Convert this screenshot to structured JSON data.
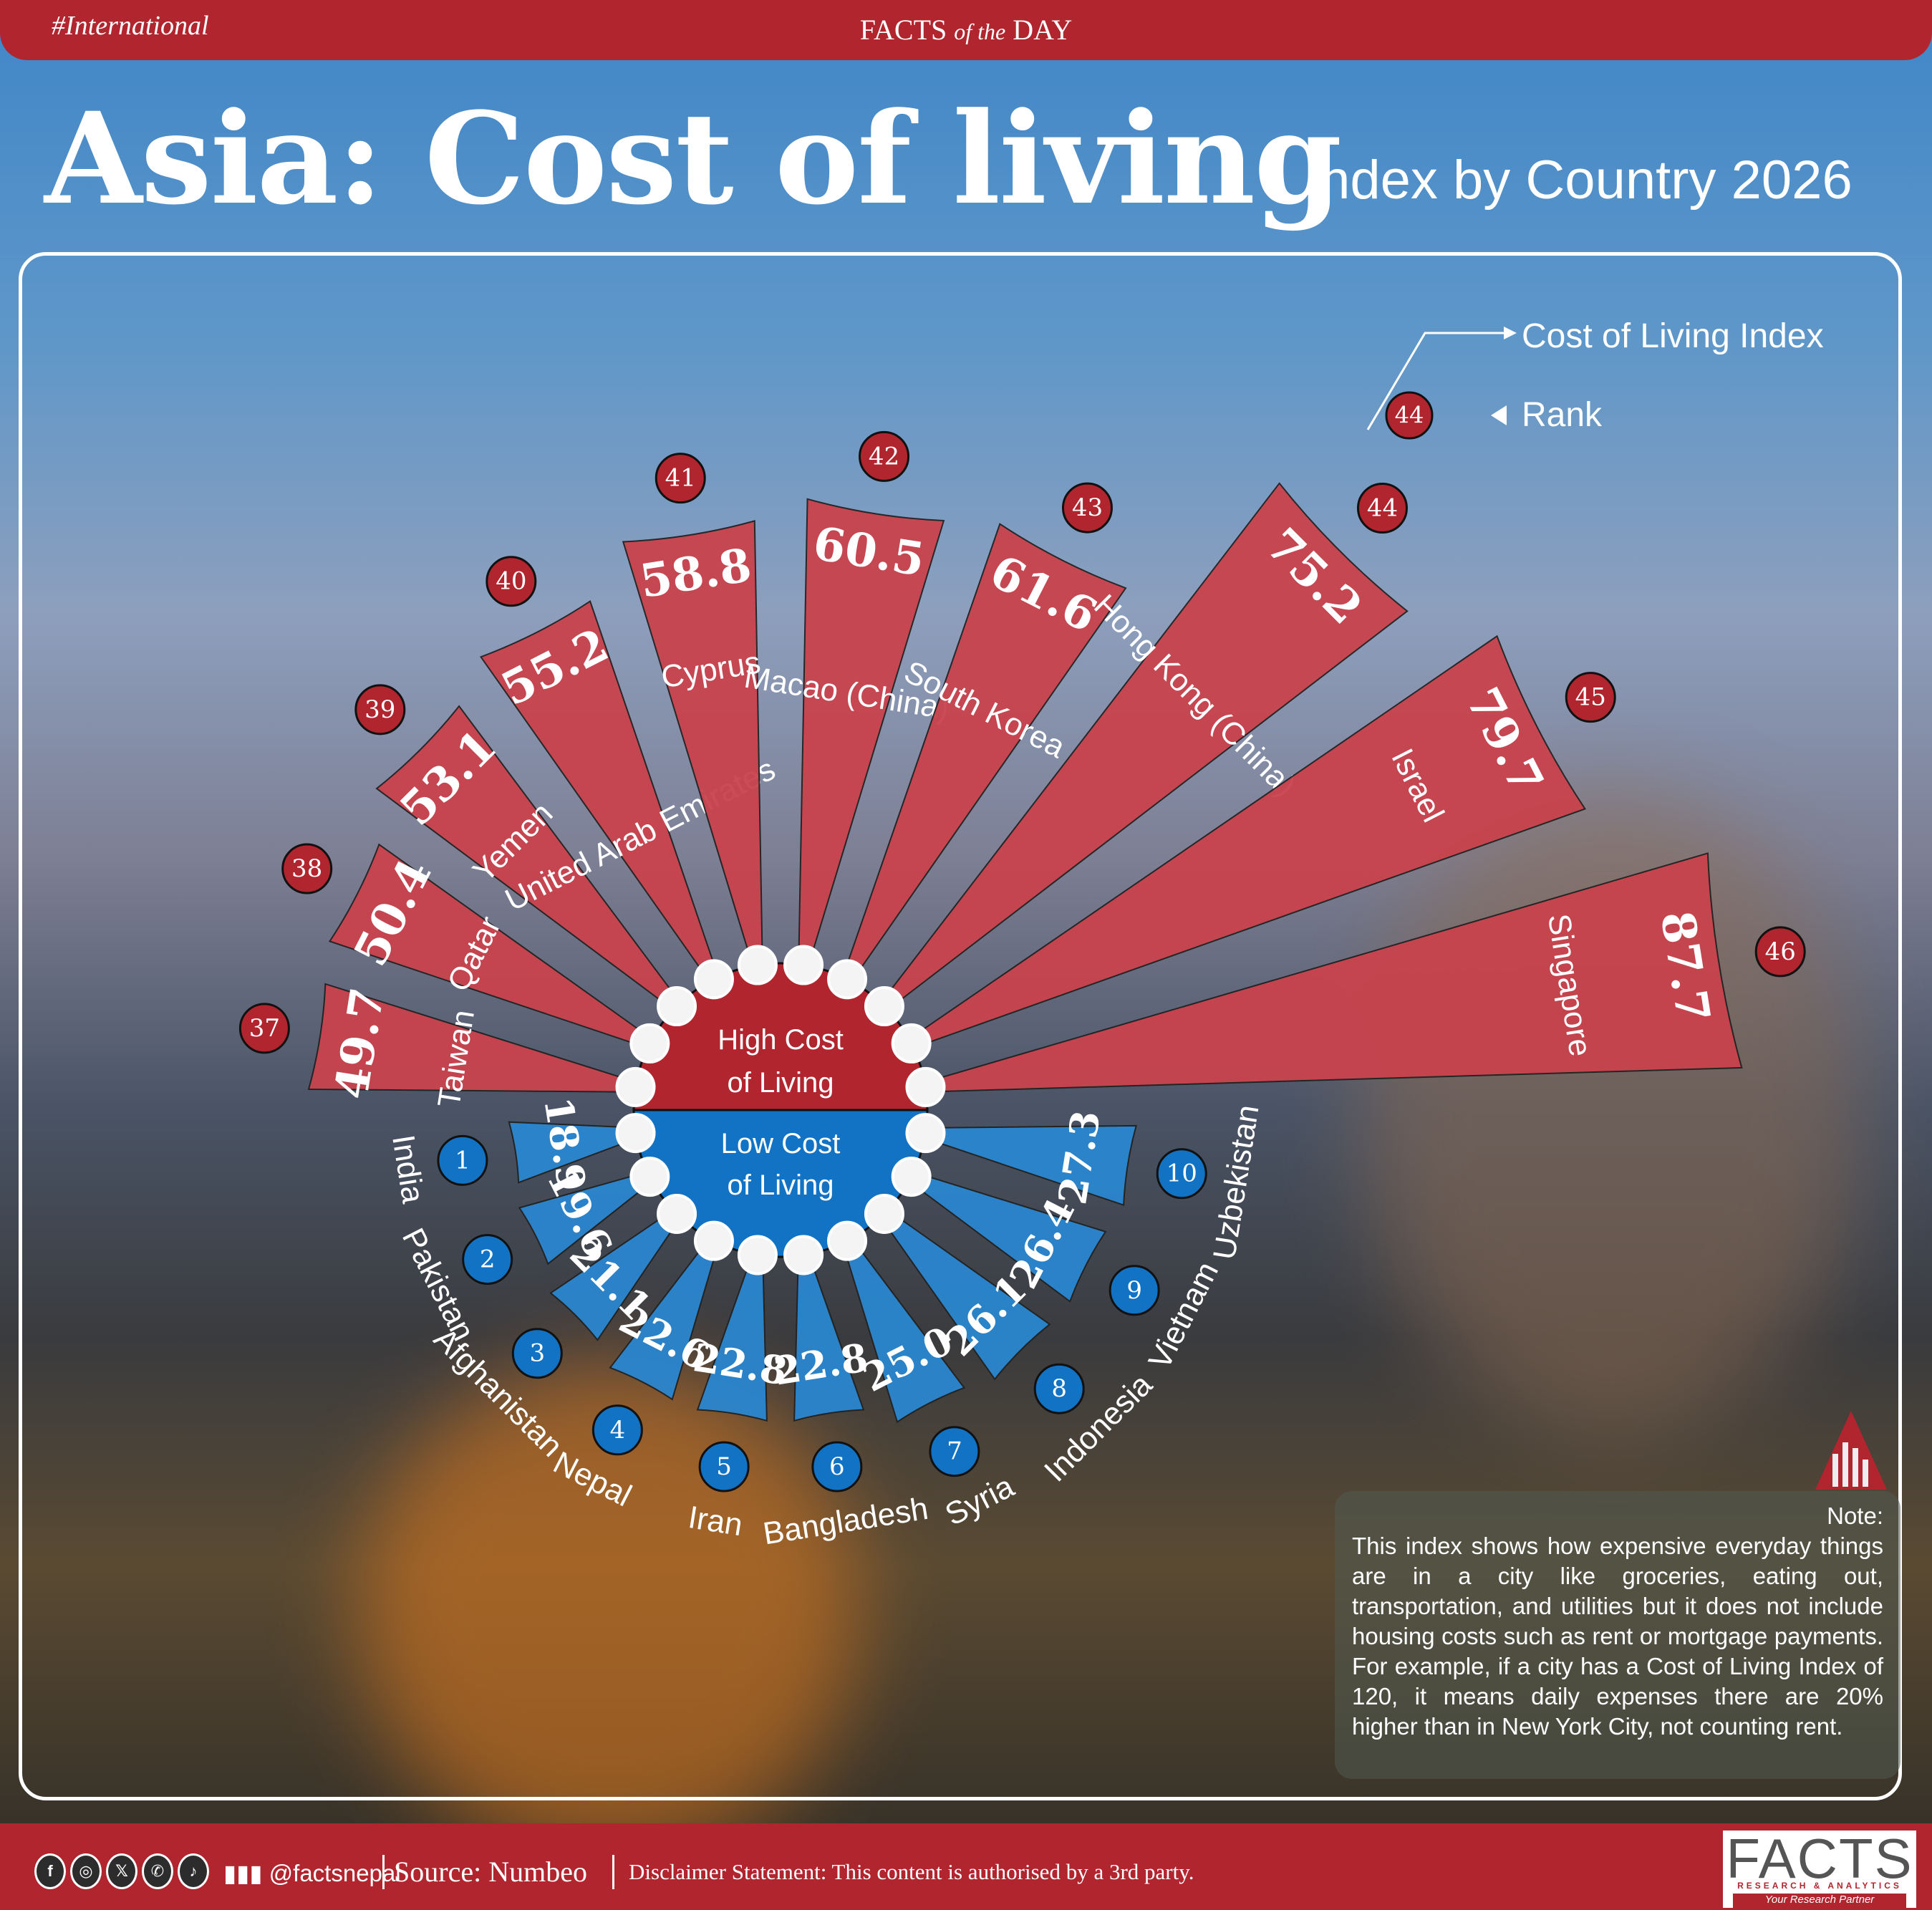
{
  "header": {
    "hashtag": "#International",
    "series_name_1": "FACTS",
    "series_name_2": "of the",
    "series_name_3": "DAY",
    "title": "Asia: Cost of living",
    "subtitle": "Index by Country 2026"
  },
  "hub": {
    "high_label_1": "High Cost",
    "high_label_2": "of Living",
    "low_label_1": "Low Cost",
    "low_label_2": "of Living"
  },
  "legend": {
    "index_label": "Cost of Living Index",
    "rank_label": "Rank",
    "rank_example": "44"
  },
  "note": {
    "title": "Note:",
    "body": "This index shows how expensive everyday things are in a city like groceries, eating out, transportation, and utilities but it does not include housing costs such as rent or mortgage payments. For example, if a city has a Cost of Living Index of 120, it means daily expenses there are 20% higher than in New York City, not counting rent."
  },
  "footer": {
    "social_icons": [
      "facebook-icon",
      "instagram-icon",
      "x-icon",
      "viber-icon",
      "tiktok-icon"
    ],
    "handle": "@factsnepal",
    "source": "Source: Numbeo",
    "disclaimer": "Disclaimer Statement: This content is authorised by a 3rd party.",
    "brand_name": "FACTS",
    "brand_sub": "RESEARCH & ANALYTICS",
    "brand_tagline": "Your Research Partner"
  },
  "colors": {
    "high": "#c9434d",
    "high_dark": "#b0252e",
    "low": "#2a86cf",
    "low_dark": "#1273c4",
    "rank_high": "#b0252e",
    "rank_low": "#1273c4"
  },
  "chart_data": {
    "type": "bar",
    "subtype": "radial-fan",
    "title": "Asia: Cost of living",
    "subtitle": "Index by Country 2026",
    "metric": "Cost of Living Index",
    "source": "Numbeo",
    "high_cost": [
      {
        "rank": 37,
        "country": "Taiwan",
        "value": 49.7
      },
      {
        "rank": 38,
        "country": "Qatar",
        "value": 50.4
      },
      {
        "rank": 39,
        "country": "Yemen",
        "value": 53.1
      },
      {
        "rank": 40,
        "country": "United Arab Emirates",
        "value": 55.2
      },
      {
        "rank": 41,
        "country": "Cyprus",
        "value": 58.8
      },
      {
        "rank": 42,
        "country": "Macao (China)",
        "value": 60.5
      },
      {
        "rank": 43,
        "country": "South Korea",
        "value": 61.6
      },
      {
        "rank": 44,
        "country": "Hong Kong (China)",
        "value": 75.2
      },
      {
        "rank": 45,
        "country": "Israel",
        "value": 79.7
      },
      {
        "rank": 46,
        "country": "Singapore",
        "value": 87.7
      }
    ],
    "low_cost": [
      {
        "rank": 1,
        "country": "India",
        "value": 18.9
      },
      {
        "rank": 2,
        "country": "Pakistan",
        "value": 19.6
      },
      {
        "rank": 3,
        "country": "Afghanistan",
        "value": 21.1
      },
      {
        "rank": 4,
        "country": "Nepal",
        "value": 22.6
      },
      {
        "rank": 5,
        "country": "Iran",
        "value": 22.8
      },
      {
        "rank": 6,
        "country": "Bangladesh",
        "value": 22.8
      },
      {
        "rank": 7,
        "country": "Syria",
        "value": 25.0
      },
      {
        "rank": 8,
        "country": "Indonesia",
        "value": 26.1
      },
      {
        "rank": 9,
        "country": "Vietnam",
        "value": 26.4
      },
      {
        "rank": 10,
        "country": "Uzbekistan",
        "value": 27.3
      }
    ]
  }
}
